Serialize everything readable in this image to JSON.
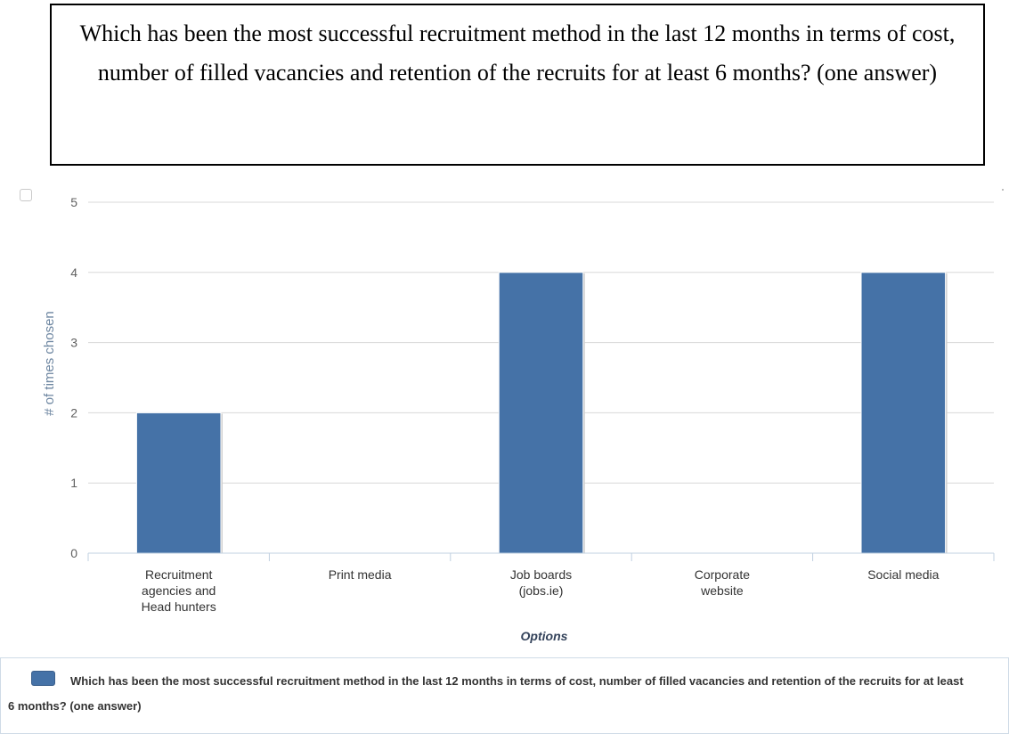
{
  "question": "Which has been the most successful recruitment method in the last 12 months in terms of cost, number of filled vacancies and retention of the recruits for at least 6 months? (one answer)",
  "chart_data": {
    "type": "bar",
    "categories": [
      "Recruitment agencies and Head hunters",
      "Print media",
      "Job boards (jobs.ie)",
      "Corporate website",
      "Social media"
    ],
    "series": [
      {
        "name": "Which has been the most successful recruitment method in the last 12 months in terms of cost, number of filled vacancies and retention of the recruits for at least 6 months? (one answer)",
        "values": [
          2,
          0,
          4,
          0,
          4
        ],
        "color": "#4572a7"
      }
    ],
    "xlabel": "Options",
    "ylabel": "# of times chosen",
    "ylim": [
      0,
      5
    ],
    "yticks": [
      0,
      1,
      2,
      3,
      4,
      5
    ],
    "grid": true,
    "legend": "bottom"
  }
}
